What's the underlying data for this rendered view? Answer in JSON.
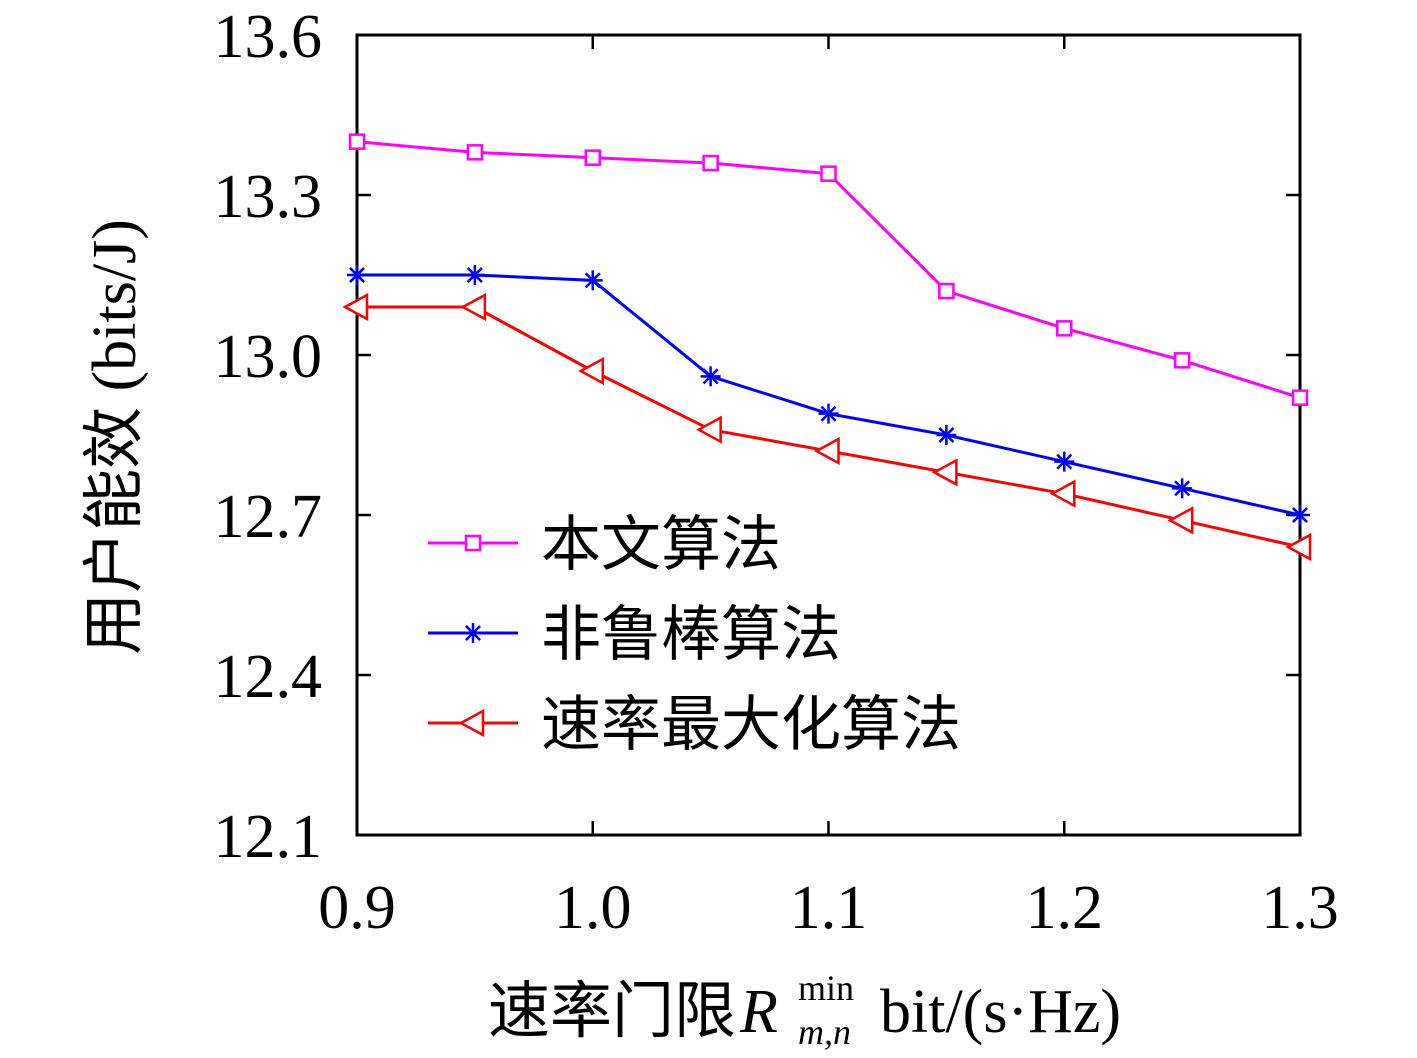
{
  "chart_data": {
    "type": "line",
    "x": [
      0.9,
      0.95,
      1.0,
      1.05,
      1.1,
      1.15,
      1.2,
      1.25,
      1.3
    ],
    "series": [
      {
        "name": "本文算法",
        "color": "#ff00ff",
        "marker": "square",
        "values": [
          13.4,
          13.38,
          13.37,
          13.36,
          13.34,
          13.12,
          13.05,
          12.99,
          12.92
        ]
      },
      {
        "name": "非鲁棒算法",
        "color": "#0000ff",
        "marker": "asterisk",
        "values": [
          13.15,
          13.15,
          13.14,
          12.96,
          12.89,
          12.85,
          12.8,
          12.75,
          12.7
        ]
      },
      {
        "name": "速率最大化算法",
        "color": "#ff0000",
        "marker": "triangle-left",
        "values": [
          13.09,
          13.09,
          12.97,
          12.86,
          12.82,
          12.78,
          12.74,
          12.69,
          12.64
        ]
      }
    ],
    "xlabel": {
      "text": "速率门限",
      "symbol": "R",
      "superscript": "min",
      "subscript": "m,n",
      "unit": "bit/(s·Hz)"
    },
    "ylabel": "用户能效 (bits/J)",
    "xlim": [
      0.9,
      1.3
    ],
    "ylim": [
      12.1,
      13.6
    ],
    "xticks": {
      "values": [
        0.9,
        1.0,
        1.1,
        1.2,
        1.3
      ],
      "labels": [
        "0.9",
        "1.0",
        "1.1",
        "1.2",
        "1.3"
      ]
    },
    "yticks": {
      "values": [
        12.1,
        12.4,
        12.7,
        13.0,
        13.3,
        13.6
      ],
      "labels": [
        "12.1",
        "12.4",
        "12.7",
        "13.0",
        "13.3",
        "13.6"
      ]
    },
    "grid": false,
    "legend_position": "lower-left"
  }
}
